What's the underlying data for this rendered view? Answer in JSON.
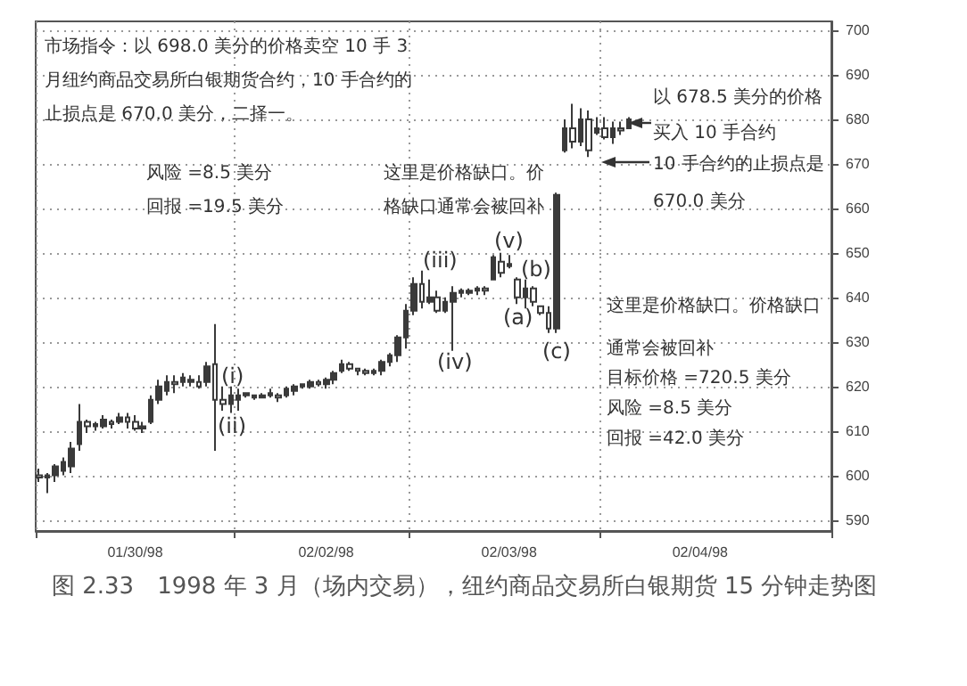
{
  "chart_data": {
    "type": "candlestick",
    "title": "图 2.33　1998 年 3 月（场内交易），纽约商品交易所白银期货 15 分钟走势图",
    "categories": [
      null,
      null,
      null,
      null,
      null,
      null,
      null,
      null,
      null,
      null,
      null,
      null,
      "01/30/98",
      null,
      null,
      null,
      null,
      null,
      null,
      null,
      null,
      null,
      null,
      null,
      null,
      null,
      null,
      null,
      null,
      null,
      null,
      null,
      null,
      null,
      null,
      null,
      "02/02/98",
      null,
      null,
      null,
      null,
      null,
      null,
      null,
      null,
      null,
      null,
      null,
      null,
      null,
      null,
      null,
      null,
      null,
      null,
      null,
      null,
      null,
      null,
      "02/03/98",
      null,
      null,
      null,
      null,
      null,
      null,
      null,
      null,
      null,
      null,
      null,
      null,
      null,
      null,
      null,
      null,
      null,
      null,
      null,
      null,
      null,
      null,
      null,
      "02/04/98",
      null,
      null,
      null,
      null,
      null,
      null,
      null,
      null,
      null,
      null,
      null,
      null,
      null,
      null,
      null,
      null
    ],
    "ohlc": [
      [
        600,
        601.5,
        598.5,
        599.5
      ],
      [
        599.5,
        600.5,
        596,
        600
      ],
      [
        600,
        602.5,
        598.5,
        602
      ],
      [
        601,
        604,
        600,
        603
      ],
      [
        602,
        607.5,
        600.5,
        606
      ],
      [
        607,
        616,
        605.5,
        612
      ],
      [
        612,
        612.5,
        609.5,
        611
      ],
      [
        611,
        612,
        610,
        611.5
      ],
      [
        611,
        613.5,
        610.5,
        612.5
      ],
      [
        612,
        612.5,
        610.5,
        611.5
      ],
      [
        612,
        614,
        611.5,
        613
      ],
      [
        613,
        614,
        610.5,
        612
      ],
      [
        612,
        613.5,
        610,
        610.5
      ],
      [
        610.5,
        612,
        609.5,
        611
      ],
      [
        612,
        618,
        611.5,
        617
      ],
      [
        617,
        621.5,
        616,
        620
      ],
      [
        619,
        622.5,
        618,
        621
      ],
      [
        621,
        622.5,
        618.5,
        620.5
      ],
      [
        621,
        623,
        620,
        622
      ],
      [
        621,
        622.5,
        620,
        621.5
      ],
      [
        621,
        622.5,
        619.5,
        620
      ],
      [
        621,
        625.5,
        620,
        624.5
      ],
      [
        625,
        634,
        605.5,
        617
      ],
      [
        617,
        620,
        614.5,
        616
      ],
      [
        616,
        620,
        614,
        618
      ],
      [
        617,
        619.5,
        614.5,
        618
      ],
      [
        618,
        618.5,
        617.5,
        618.5
      ],
      [
        617.5,
        618,
        617,
        618
      ],
      [
        617.5,
        618.5,
        617.5,
        618
      ],
      [
        618,
        619.5,
        617.5,
        618.5
      ],
      [
        618,
        618.5,
        616.5,
        617.5
      ],
      [
        618,
        620,
        617.5,
        619.5
      ],
      [
        619,
        620.5,
        618,
        620
      ],
      [
        620,
        620.5,
        619.5,
        620.5
      ],
      [
        620,
        621.5,
        619.5,
        621
      ],
      [
        621,
        621.5,
        620,
        620.5
      ],
      [
        620.5,
        622,
        619.5,
        621.5
      ],
      [
        621.5,
        623.5,
        620.5,
        623
      ],
      [
        623.5,
        626,
        623,
        625
      ],
      [
        625,
        625.5,
        623.5,
        624
      ],
      [
        624,
        624,
        622.5,
        623.5
      ],
      [
        623.5,
        624,
        622.5,
        623
      ],
      [
        623,
        624,
        622.5,
        623.5
      ],
      [
        623.5,
        626,
        622.5,
        625.5
      ],
      [
        625.5,
        627.5,
        624.5,
        627
      ],
      [
        627,
        631.5,
        625.5,
        631
      ],
      [
        631,
        638.5,
        628.5,
        637
      ],
      [
        637,
        644.5,
        636,
        643
      ],
      [
        643,
        646,
        637.5,
        639
      ],
      [
        639,
        644,
        638.5,
        640
      ],
      [
        640,
        641.5,
        636.5,
        637
      ],
      [
        637,
        640,
        636.5,
        639
      ],
      [
        639,
        642.5,
        628,
        641
      ],
      [
        641,
        642,
        640,
        641.5
      ],
      [
        641,
        642,
        640.5,
        641.5
      ],
      [
        641.5,
        642.5,
        640.5,
        642
      ],
      [
        642,
        642.5,
        640.5,
        641.5
      ],
      [
        644,
        649.5,
        644,
        649
      ],
      [
        648,
        650,
        644.5,
        645.5
      ],
      [
        647,
        649.5,
        646.5,
        647.5
      ],
      [
        644,
        644.5,
        638.5,
        640
      ],
      [
        640,
        644,
        637.5,
        642
      ],
      [
        642,
        642.5,
        638,
        639
      ],
      [
        638,
        638,
        636,
        636.5
      ],
      [
        636.5,
        638,
        632,
        633
      ],
      [
        633,
        663.5,
        632,
        663
      ],
      [
        673,
        680,
        672.5,
        678
      ],
      [
        678,
        683.5,
        673.5,
        675
      ],
      [
        675,
        682.5,
        674,
        680
      ],
      [
        680,
        682,
        671.5,
        673
      ],
      [
        677,
        680.5,
        676.5,
        678
      ],
      [
        678,
        680.5,
        675.5,
        676
      ],
      [
        676,
        679.5,
        674.5,
        678
      ],
      [
        678,
        679.5,
        676.5,
        677.5
      ],
      [
        678,
        680.5,
        678,
        680
      ],
      null,
      null,
      null,
      null,
      null,
      null,
      null,
      null,
      null,
      null,
      null,
      null,
      null,
      null,
      null,
      null,
      null,
      null,
      null,
      null,
      null,
      null,
      null,
      null,
      null
    ],
    "color": "#3a3a3a",
    "ylim": [
      587.5,
      702
    ],
    "yticks": [
      590,
      600,
      610,
      620,
      630,
      640,
      650,
      660,
      670,
      680,
      690,
      700
    ],
    "grid": true,
    "annotations": [
      "市场指令：以 698.0 美分的价格卖空 10 手 3 月纽约商品交易所白银期货合约，10 手合约的止损点是 670.0 美分，二择一。",
      "风险 =8.5 美分",
      "回报 =19.5 美分",
      "这里是价格缺口。价格缺口通常会被回补",
      "以 678.5 美分的价格买入 10 手合约",
      "10 手合约的止损点是670.0 美分",
      "这里是价格缺口。价格缺口通常会被回补",
      "目标价格 =720.5 美分",
      "风险 =8.5 美分",
      "回报 =42.0 美分",
      "(i)",
      "(ii)",
      "(iii)",
      "(iv)",
      "(v)",
      "(a)",
      "(b)",
      "(c)"
    ]
  }
}
